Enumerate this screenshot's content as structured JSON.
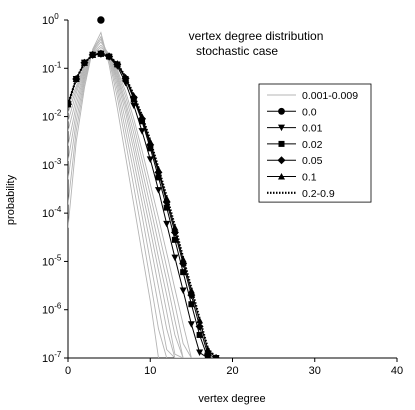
{
  "chart_data": {
    "type": "line",
    "title": "vertex degree distribution",
    "subtitle": "stochastic case",
    "xlabel": "vertex degree",
    "ylabel": "probability",
    "xlim": [
      0,
      40
    ],
    "ylim": [
      1e-07,
      1
    ],
    "yscale": "log",
    "grid": false,
    "legend_placement": "right",
    "x_ticks": [
      {
        "value": 0,
        "label": "0"
      },
      {
        "value": 10,
        "label": "10"
      },
      {
        "value": 20,
        "label": "20"
      },
      {
        "value": 30,
        "label": "30"
      },
      {
        "value": 40,
        "label": "40"
      }
    ],
    "y_ticks": [
      {
        "value": 1,
        "base": "10",
        "exp": "0"
      },
      {
        "value": 0.1,
        "base": "10",
        "exp": "-1"
      },
      {
        "value": 0.01,
        "base": "10",
        "exp": "-2"
      },
      {
        "value": 0.001,
        "base": "10",
        "exp": "-3"
      },
      {
        "value": 0.0001,
        "base": "10",
        "exp": "-4"
      },
      {
        "value": 1e-05,
        "base": "10",
        "exp": "-5"
      },
      {
        "value": 1e-06,
        "base": "10",
        "exp": "-6"
      },
      {
        "value": 1e-07,
        "base": "10",
        "exp": "-7"
      }
    ],
    "series": [
      {
        "name": "0.001-0.009",
        "style": "gray-lines",
        "color": "#b4b4b4",
        "curves": [
          {
            "x": [
              0,
              1,
              2,
              3,
              4,
              5,
              6,
              7,
              8,
              9,
              10,
              11
            ],
            "y": [
              5e-05,
              0.003,
              0.04,
              0.25,
              0.55,
              0.12,
              0.015,
              0.0015,
              0.00015,
              1.5e-05,
              1.5e-06,
              1e-07
            ]
          },
          {
            "x": [
              0,
              1,
              2,
              3,
              4,
              5,
              6,
              7,
              8,
              9,
              10,
              11,
              12
            ],
            "y": [
              0.00015,
              0.005,
              0.05,
              0.24,
              0.45,
              0.15,
              0.025,
              0.003,
              0.00035,
              4e-05,
              4e-06,
              4e-07,
              1e-07
            ]
          },
          {
            "x": [
              0,
              1,
              2,
              3,
              4,
              5,
              6,
              7,
              8,
              9,
              10,
              11,
              12,
              13
            ],
            "y": [
              0.0005,
              0.008,
              0.06,
              0.23,
              0.4,
              0.17,
              0.035,
              0.005,
              0.0007,
              9e-05,
              1e-05,
              1.2e-06,
              1.5e-07,
              1e-07
            ]
          },
          {
            "x": [
              0,
              1,
              2,
              3,
              4,
              5,
              6,
              7,
              8,
              9,
              10,
              11,
              12,
              13,
              14
            ],
            "y": [
              0.0012,
              0.012,
              0.07,
              0.22,
              0.35,
              0.19,
              0.045,
              0.008,
              0.0012,
              0.00017,
              2.3e-05,
              3e-06,
              4e-07,
              1e-07,
              1e-07
            ]
          },
          {
            "x": [
              0,
              1,
              2,
              3,
              4,
              5,
              6,
              7,
              8,
              9,
              10,
              11,
              12,
              13,
              14
            ],
            "y": [
              0.0025,
              0.017,
              0.08,
              0.21,
              0.3,
              0.2,
              0.055,
              0.012,
              0.002,
              0.0003,
              4.5e-05,
              6.5e-06,
              9e-07,
              1.2e-07,
              1e-07
            ]
          },
          {
            "x": [
              0,
              1,
              2,
              3,
              4,
              5,
              6,
              7,
              8,
              9,
              10,
              11,
              12,
              13,
              14,
              15
            ],
            "y": [
              0.005,
              0.023,
              0.09,
              0.2,
              0.27,
              0.2,
              0.065,
              0.016,
              0.003,
              0.0005,
              8e-05,
              1.2e-05,
              2e-06,
              3e-07,
              1e-07,
              1e-07
            ]
          },
          {
            "x": [
              0,
              1,
              2,
              3,
              4,
              5,
              6,
              7,
              8,
              9,
              10,
              11,
              12,
              13,
              14,
              15,
              16
            ],
            "y": [
              0.008,
              0.03,
              0.1,
              0.19,
              0.24,
              0.2,
              0.075,
              0.02,
              0.0045,
              0.0008,
              0.00014,
              2.3e-05,
              4e-06,
              6e-07,
              1e-07,
              1e-07,
              1e-07
            ]
          },
          {
            "x": [
              0,
              1,
              2,
              3,
              4,
              5,
              6,
              7,
              8,
              9,
              10,
              11,
              12,
              13,
              14,
              15,
              16
            ],
            "y": [
              0.012,
              0.036,
              0.11,
              0.19,
              0.22,
              0.2,
              0.085,
              0.026,
              0.0065,
              0.0013,
              0.00024,
              4.3e-05,
              7.5e-06,
              1.3e-06,
              2e-07,
              1e-07,
              1e-07
            ]
          },
          {
            "x": [
              0,
              1,
              2,
              3,
              4,
              5,
              6,
              7,
              8,
              9,
              10,
              11,
              12,
              13,
              14,
              15,
              16,
              17
            ],
            "y": [
              0.016,
              0.042,
              0.12,
              0.19,
              0.21,
              0.2,
              0.095,
              0.033,
              0.009,
              0.002,
              0.0004,
              8e-05,
              1.5e-05,
              2.7e-06,
              5e-07,
              1e-07,
              1e-07,
              1e-07
            ]
          }
        ]
      },
      {
        "name": "0.0",
        "style": "circle-marker",
        "color": "#000000",
        "x": [
          4
        ],
        "y": [
          1
        ]
      },
      {
        "name": "0.01",
        "style": "triangle-down",
        "color": "#000000",
        "x": [
          0,
          1,
          2,
          3,
          4,
          5,
          6,
          7,
          8,
          9,
          10,
          11,
          12,
          13,
          14,
          15,
          16,
          17,
          18
        ],
        "y": [
          0.018,
          0.06,
          0.13,
          0.19,
          0.2,
          0.17,
          0.11,
          0.05,
          0.017,
          0.005,
          0.0013,
          0.0003,
          6e-05,
          1.2e-05,
          2.5e-06,
          5e-07,
          1.3e-07,
          1e-07,
          1e-07
        ]
      },
      {
        "name": "0.02",
        "style": "square",
        "color": "#000000",
        "x": [
          0,
          1,
          2,
          3,
          4,
          5,
          6,
          7,
          8,
          9,
          10,
          11,
          12,
          13,
          14,
          15,
          16,
          17,
          18
        ],
        "y": [
          0.018,
          0.06,
          0.13,
          0.19,
          0.2,
          0.175,
          0.12,
          0.06,
          0.023,
          0.008,
          0.0022,
          0.00055,
          0.00013,
          2.8e-05,
          6e-06,
          1.3e-06,
          3e-07,
          1e-07,
          1e-07
        ]
      },
      {
        "name": "0.05",
        "style": "diamond",
        "color": "#000000",
        "x": [
          0,
          1,
          2,
          3,
          4,
          5,
          6,
          7,
          8,
          9,
          10,
          11,
          12,
          13,
          14,
          15,
          16,
          17,
          18
        ],
        "y": [
          0.018,
          0.06,
          0.13,
          0.19,
          0.2,
          0.175,
          0.12,
          0.062,
          0.025,
          0.009,
          0.0026,
          0.0007,
          0.00017,
          4e-05,
          9e-06,
          2e-06,
          4.5e-07,
          1.2e-07,
          1e-07
        ]
      },
      {
        "name": "0.1",
        "style": "triangle-up",
        "color": "#000000",
        "x": [
          0,
          1,
          2,
          3,
          4,
          5,
          6,
          7,
          8,
          9,
          10,
          11,
          12,
          13,
          14,
          15,
          16,
          17,
          18
        ],
        "y": [
          0.018,
          0.06,
          0.13,
          0.19,
          0.2,
          0.18,
          0.125,
          0.065,
          0.027,
          0.01,
          0.003,
          0.0008,
          0.0002,
          5e-05,
          1.1e-05,
          2.5e-06,
          6e-07,
          1.5e-07,
          1e-07
        ]
      },
      {
        "name": "0.2-0.9",
        "style": "dotted",
        "color": "#000000",
        "x": [
          0,
          1,
          2,
          3,
          4,
          5,
          6,
          7,
          8,
          9,
          10,
          11,
          12,
          13,
          14,
          15,
          16,
          17,
          18
        ],
        "y": [
          0.018,
          0.06,
          0.13,
          0.19,
          0.2,
          0.18,
          0.125,
          0.066,
          0.028,
          0.0105,
          0.0032,
          0.00085,
          0.00022,
          5.5e-05,
          1.2e-05,
          2.8e-06,
          6.5e-07,
          1.6e-07,
          1e-07
        ]
      }
    ]
  }
}
